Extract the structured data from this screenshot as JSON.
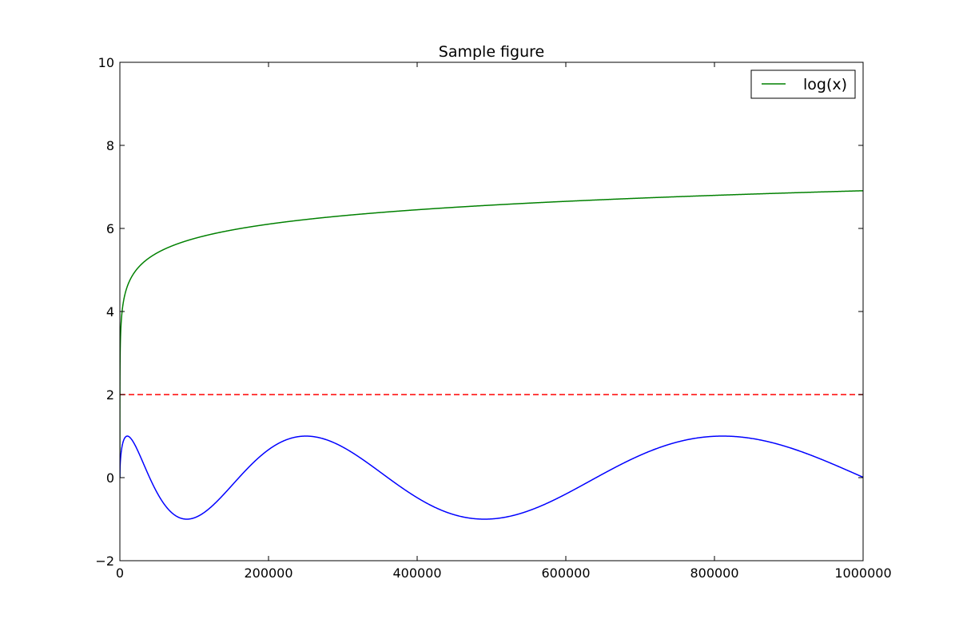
{
  "chart_data": {
    "type": "line",
    "title": "Sample figure",
    "xlabel": "",
    "ylabel": "",
    "xlim": [
      0,
      1000000
    ],
    "ylim": [
      -2,
      10
    ],
    "x_ticks": [
      0,
      200000,
      400000,
      600000,
      800000,
      1000000
    ],
    "x_tick_labels": [
      "0",
      "200000",
      "400000",
      "600000",
      "800000",
      "1000000"
    ],
    "y_ticks": [
      -2,
      0,
      2,
      4,
      6,
      8,
      10
    ],
    "y_tick_labels": [
      "−2",
      "0",
      "2",
      "4",
      "6",
      "8",
      "10"
    ],
    "grid": false,
    "legend": {
      "placement": "top-right",
      "entries": [
        {
          "label": "log(x)",
          "color": "#008000",
          "style": "solid"
        }
      ]
    },
    "series": [
      {
        "name": "log(x)",
        "color": "#008000",
        "style": "solid",
        "function": "log10(x)",
        "in_legend": true,
        "x": [
          1,
          10,
          100,
          1000,
          5000,
          10000,
          50000,
          100000,
          200000,
          400000,
          600000,
          800000,
          1000000
        ],
        "y": [
          0,
          1,
          2,
          3,
          3.7,
          4,
          4.7,
          5,
          5.3,
          5.6,
          5.78,
          5.9,
          6
        ]
      },
      {
        "color": "#ff0000",
        "style": "dashed",
        "in_legend": false,
        "x": [
          0,
          1000000
        ],
        "y": [
          2,
          2
        ]
      },
      {
        "color": "#0000ff",
        "style": "solid",
        "function": "sin(k*sqrt(x))",
        "in_legend": false,
        "x": [
          0,
          10000,
          72000,
          200000,
          395000,
          655000,
          980000,
          1000000
        ],
        "y": [
          0,
          1,
          -1,
          1,
          -1,
          1,
          -1,
          -1
        ]
      }
    ]
  }
}
